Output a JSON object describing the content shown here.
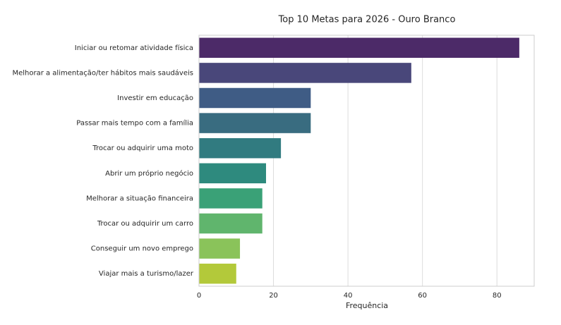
{
  "chart_data": {
    "type": "barh",
    "title": "Top 10 Metas para 2026 - Ouro Branco",
    "x_label": "Frequência",
    "categories": [
      "Iniciar ou retomar atividade física",
      "Melhorar a alimentação/ter hábitos mais saudáveis",
      "Investir em educação",
      "Passar mais tempo com a família",
      "Trocar ou adquirir uma moto",
      "Abrir um próprio negócio",
      "Melhorar a situação financeira",
      "Trocar ou adquirir um carro",
      "Conseguir um novo emprego",
      "Viajar mais a turismo/lazer"
    ],
    "values": [
      86,
      57,
      30,
      30,
      22,
      18,
      17,
      17,
      11,
      10
    ],
    "colors": [
      "#4c2a68",
      "#49477a",
      "#3f5c85",
      "#396c80",
      "#317b80",
      "#2e8a7e",
      "#3aa177",
      "#60b56d",
      "#8ac35a",
      "#b3c93a"
    ],
    "xlim": [
      0,
      90
    ],
    "xticks": [
      0,
      20,
      40,
      60,
      80
    ],
    "grid": true
  }
}
